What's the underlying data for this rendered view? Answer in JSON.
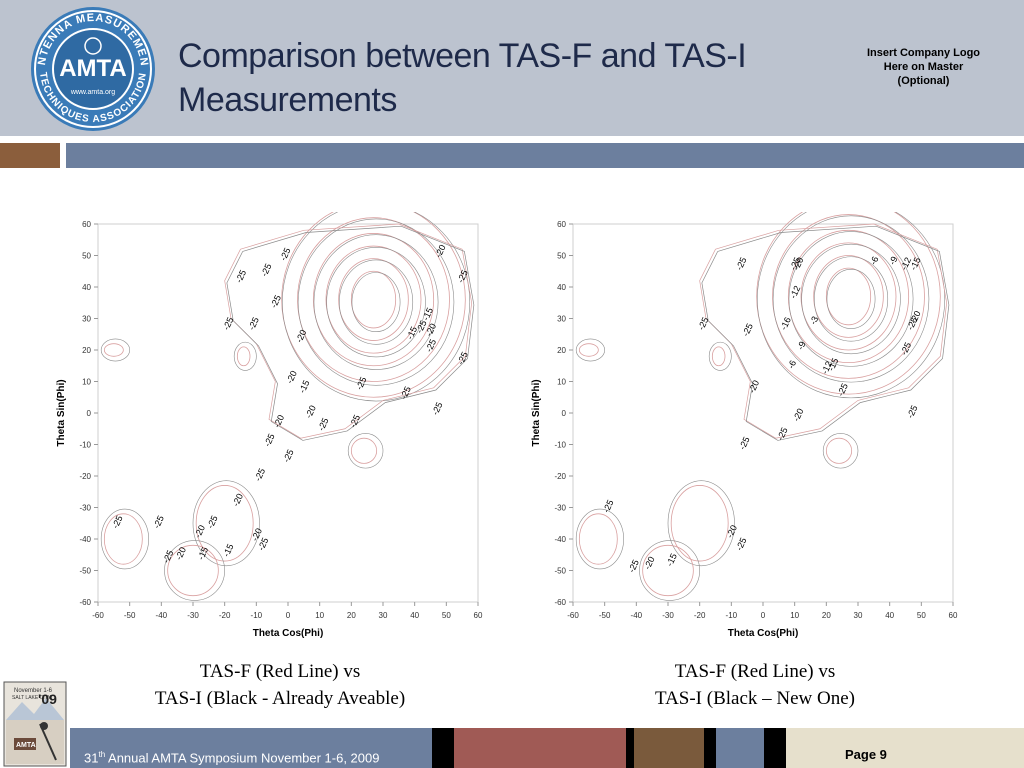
{
  "header": {
    "title_line1": "Comparison between TAS-F and TAS-I",
    "title_line2": "Measurements",
    "insert_logo": [
      "Insert Company Logo",
      "Here on Master",
      "(Optional)"
    ],
    "logo": {
      "ring_text_top": "ANTENNA MEASUREMENT",
      "ring_text_bottom": "TECHNIQUES ASSOCIATION",
      "center": "AMTA",
      "url": "www.amta.org"
    }
  },
  "captions": {
    "left": [
      "TAS-F (Red Line) vs",
      "TAS-I (Black - Already Aveable)"
    ],
    "right": [
      "TAS-F (Red Line) vs",
      "TAS-I (Black – New One)"
    ]
  },
  "footer": {
    "symposium_pre": "31",
    "symposium_sup": "th",
    "symposium_post": " Annual AMTA Symposium November 1-6, 2009",
    "page": "Page 9",
    "badge_top": "November 1-6",
    "badge_mid": "SALT LAKE CITY",
    "badge_year": "'09",
    "badge_bottom": "AMTA"
  },
  "colors": {
    "red_line": "#d9a0a0",
    "black_line": "#8a8a8a",
    "header_bg": "#bcc3cf",
    "bar_blue": "#6c7f9e",
    "bar_brown": "#8b5e3c"
  },
  "chart_data": [
    {
      "type": "contour",
      "xlabel": "Theta Cos(Phi)",
      "ylabel": "Theta Sin(Phi)",
      "xlim": [
        -60,
        60
      ],
      "ylim": [
        -60,
        60
      ],
      "xticks": [
        -60,
        -50,
        -40,
        -30,
        -20,
        -10,
        0,
        10,
        20,
        30,
        40,
        50,
        60
      ],
      "yticks": [
        60,
        50,
        40,
        30,
        20,
        10,
        0,
        -10,
        -20,
        -30,
        -40,
        -50,
        -60
      ],
      "series": [
        {
          "name": "TAS-F (Red Line)",
          "color": "#d9a0a0"
        },
        {
          "name": "TAS-I (Black - Already Aveable)",
          "color": "#8a8a8a"
        }
      ],
      "peak": {
        "x": 27,
        "y": 36
      },
      "contour_labels": [
        {
          "x": 49,
          "y": 51,
          "t": "-20"
        },
        {
          "x": 56,
          "y": 43,
          "t": "-25"
        },
        {
          "x": -14,
          "y": 43,
          "t": "-25"
        },
        {
          "x": -6,
          "y": 45,
          "t": "-25"
        },
        {
          "x": 0,
          "y": 50,
          "t": "-25"
        },
        {
          "x": -3,
          "y": 35,
          "t": "-25"
        },
        {
          "x": -18,
          "y": 28,
          "t": "-25"
        },
        {
          "x": -10,
          "y": 28,
          "t": "-25"
        },
        {
          "x": 5,
          "y": 24,
          "t": "-20"
        },
        {
          "x": 40,
          "y": 25,
          "t": "-15"
        },
        {
          "x": 45,
          "y": 31,
          "t": "-15"
        },
        {
          "x": 46,
          "y": 26,
          "t": "-20"
        },
        {
          "x": 43,
          "y": 27,
          "t": "-25"
        },
        {
          "x": 46,
          "y": 21,
          "t": "-25"
        },
        {
          "x": 56,
          "y": 17,
          "t": "-25"
        },
        {
          "x": 2,
          "y": 11,
          "t": "-20"
        },
        {
          "x": 6,
          "y": 8,
          "t": "-15"
        },
        {
          "x": 24,
          "y": 9,
          "t": "-25"
        },
        {
          "x": 38,
          "y": 6,
          "t": "-25"
        },
        {
          "x": 48,
          "y": 1,
          "t": "-25"
        },
        {
          "x": 8,
          "y": 0,
          "t": "-20"
        },
        {
          "x": -2,
          "y": -3,
          "t": "-20"
        },
        {
          "x": 12,
          "y": -4,
          "t": "-25"
        },
        {
          "x": 22,
          "y": -3,
          "t": "-25"
        },
        {
          "x": -5,
          "y": -9,
          "t": "-25"
        },
        {
          "x": 1,
          "y": -14,
          "t": "-25"
        },
        {
          "x": -8,
          "y": -20,
          "t": "-25"
        },
        {
          "x": -15,
          "y": -28,
          "t": "-20"
        },
        {
          "x": -53,
          "y": -35,
          "t": "-25"
        },
        {
          "x": -40,
          "y": -35,
          "t": "-25"
        },
        {
          "x": -23,
          "y": -35,
          "t": "-25"
        },
        {
          "x": -27,
          "y": -38,
          "t": "-20"
        },
        {
          "x": -9,
          "y": -39,
          "t": "-20"
        },
        {
          "x": -7,
          "y": -42,
          "t": "-25"
        },
        {
          "x": -37,
          "y": -46,
          "t": "-25"
        },
        {
          "x": -33,
          "y": -45,
          "t": "-20"
        },
        {
          "x": -26,
          "y": -45,
          "t": "-15"
        },
        {
          "x": -18,
          "y": -44,
          "t": "-15"
        }
      ]
    },
    {
      "type": "contour",
      "xlabel": "Theta Cos(Phi)",
      "ylabel": "Theta Sin(Phi)",
      "xlim": [
        -60,
        60
      ],
      "ylim": [
        -60,
        60
      ],
      "xticks": [
        -60,
        -50,
        -40,
        -30,
        -20,
        -10,
        0,
        10,
        20,
        30,
        40,
        50,
        60
      ],
      "yticks": [
        60,
        50,
        40,
        30,
        20,
        10,
        0,
        -10,
        -20,
        -30,
        -40,
        -50,
        -60
      ],
      "series": [
        {
          "name": "TAS-F (Red Line)",
          "color": "#d9a0a0"
        },
        {
          "name": "TAS-I (Black – New One)",
          "color": "#8a8a8a"
        }
      ],
      "peak": {
        "x": 27,
        "y": 37
      },
      "contour_labels": [
        {
          "x": -6,
          "y": 47,
          "t": "-25"
        },
        {
          "x": 11,
          "y": 47,
          "t": "-25"
        },
        {
          "x": 12,
          "y": 47,
          "t": "-20"
        },
        {
          "x": 36,
          "y": 48,
          "t": "-6"
        },
        {
          "x": 42,
          "y": 48,
          "t": "-9"
        },
        {
          "x": 46,
          "y": 47,
          "t": "-12"
        },
        {
          "x": 49,
          "y": 47,
          "t": "-15"
        },
        {
          "x": 11,
          "y": 38,
          "t": "-12"
        },
        {
          "x": 17,
          "y": 29,
          "t": "-3"
        },
        {
          "x": 8,
          "y": 28,
          "t": "-16"
        },
        {
          "x": -18,
          "y": 28,
          "t": "-25"
        },
        {
          "x": -4,
          "y": 26,
          "t": "-25"
        },
        {
          "x": 49,
          "y": 30,
          "t": "-20"
        },
        {
          "x": 48,
          "y": 28,
          "t": "-25"
        },
        {
          "x": 13,
          "y": 21,
          "t": "-9"
        },
        {
          "x": 10,
          "y": 15,
          "t": "-6"
        },
        {
          "x": 21,
          "y": 14,
          "t": "-12"
        },
        {
          "x": 23,
          "y": 15,
          "t": "-15"
        },
        {
          "x": 46,
          "y": 20,
          "t": "-25"
        },
        {
          "x": -2,
          "y": 8,
          "t": "-20"
        },
        {
          "x": 26,
          "y": 7,
          "t": "-25"
        },
        {
          "x": 48,
          "y": 0,
          "t": "-25"
        },
        {
          "x": 12,
          "y": -1,
          "t": "-20"
        },
        {
          "x": 7,
          "y": -7,
          "t": "-25"
        },
        {
          "x": -5,
          "y": -10,
          "t": "-25"
        },
        {
          "x": -48,
          "y": -30,
          "t": "-25"
        },
        {
          "x": -9,
          "y": -38,
          "t": "-20"
        },
        {
          "x": -6,
          "y": -42,
          "t": "-25"
        },
        {
          "x": -40,
          "y": -49,
          "t": "-25"
        },
        {
          "x": -35,
          "y": -48,
          "t": "-20"
        },
        {
          "x": -28,
          "y": -47,
          "t": "-15"
        }
      ]
    }
  ]
}
